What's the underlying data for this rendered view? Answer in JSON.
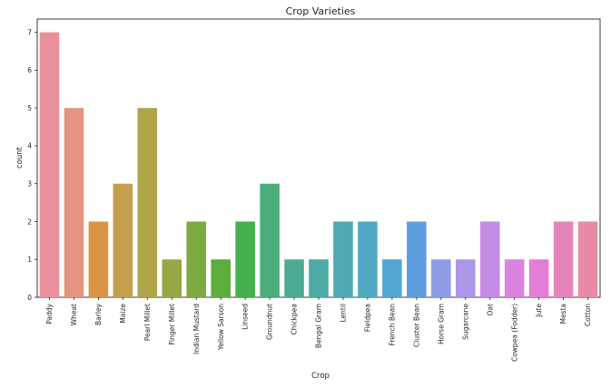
{
  "chart_data": {
    "type": "bar",
    "title": "Crop Varieties",
    "xlabel": "Crop",
    "ylabel": "count",
    "ylim": [
      0,
      7.35
    ],
    "yticks": [
      0,
      1,
      2,
      3,
      4,
      5,
      6,
      7
    ],
    "grid": false,
    "categories": [
      "Paddy",
      "Wheat",
      "Barley",
      "Maize",
      "Pearl Millet",
      "Finger Millet",
      "Indian Mustard",
      "Yellow Sarson",
      "Linseed",
      "Groundnut",
      "Chickpea",
      "Bengal Gram",
      "Lentil",
      "Fieldpea",
      "French Bean",
      "Cluster Bean",
      "Horse Gram",
      "Sugarcane",
      "Oat",
      "Cowpea (Fodder)",
      "Jute",
      "Mesta",
      "Cotton"
    ],
    "values": [
      7,
      5,
      2,
      3,
      5,
      1,
      2,
      1,
      2,
      3,
      1,
      1,
      2,
      2,
      1,
      2,
      1,
      1,
      2,
      1,
      1,
      2,
      2
    ],
    "colors": [
      "#E8919A",
      "#E4957F",
      "#D99544",
      "#C3A04B",
      "#AFA549",
      "#97A844",
      "#7DAA3E",
      "#5BAE3B",
      "#40B14C",
      "#4AAE7C",
      "#4BAC93",
      "#4DAAA5",
      "#4FAAB4",
      "#50AAC3",
      "#52A7D3",
      "#5E9EE0",
      "#8E9CE6",
      "#AB96E8",
      "#C48CE5",
      "#D983DF",
      "#E47DD5",
      "#E584BA",
      "#E78AA4"
    ]
  }
}
